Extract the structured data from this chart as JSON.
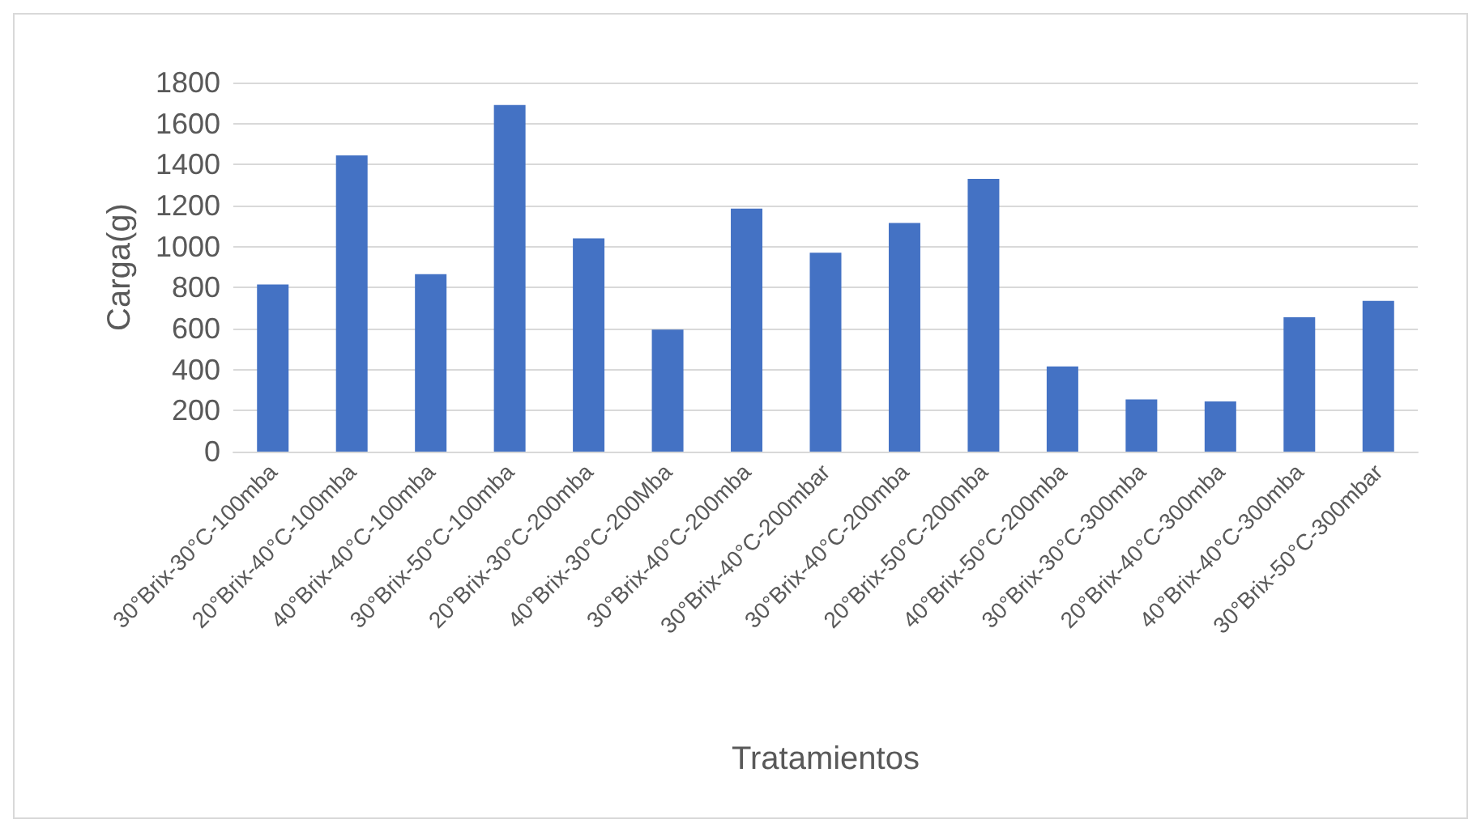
{
  "chart_data": {
    "type": "bar",
    "xlabel": "Tratamientos",
    "ylabel": "Carga(g)",
    "categories": [
      "30°Brix-30°C-100mba",
      "20°Brix-40°C-100mba",
      "40°Brix-40°C-100mba",
      "30°Brix-50°C-100mba",
      "20°Brix-30°C-200mba",
      "40°Brix-30°C-200Mba",
      "30°Brix-40°C-200mba",
      "30°Brix-40°C-200mbar",
      "30°Brix-40°C-200mba",
      "20°Brix-50°C-200mba",
      "40°Brix-50°C-200mba",
      "30°Brix-30°C-300mba",
      "20°Brix-40°C-300mba",
      "40°Brix-40°C-300mba",
      "30°Brix-50°C-300mbar"
    ],
    "values": [
      815,
      1445,
      865,
      1690,
      1040,
      595,
      1185,
      970,
      1115,
      1330,
      415,
      255,
      245,
      655,
      735
    ],
    "color": "#4472c4",
    "ylim": [
      0,
      1800
    ],
    "yticks": [
      0,
      200,
      400,
      600,
      800,
      1000,
      1200,
      1400,
      1600,
      1800
    ],
    "grid": "y"
  }
}
